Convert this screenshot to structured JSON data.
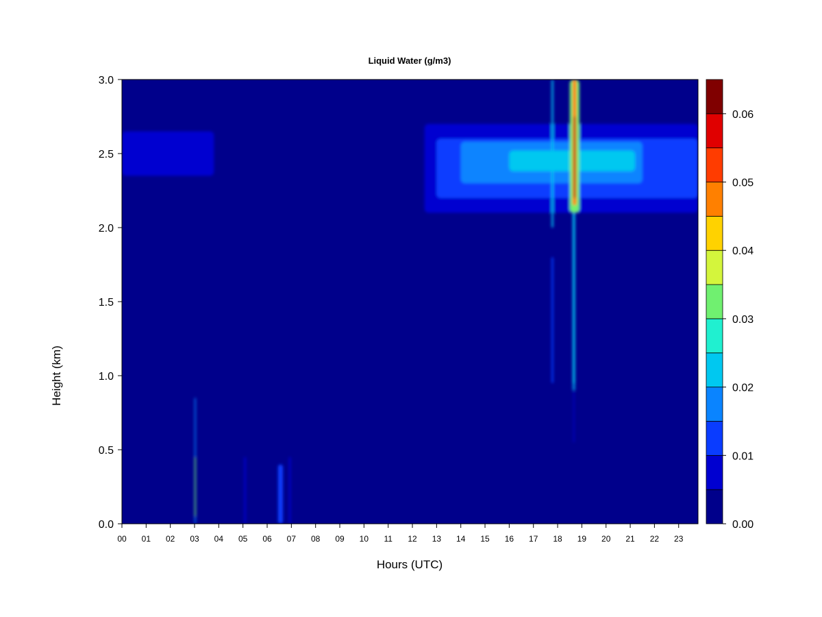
{
  "chart_data": {
    "type": "heatmap",
    "title": "Liquid Water (g/m3)",
    "xlabel": "Hours (UTC)",
    "ylabel": "Height (km)",
    "xlim": [
      0,
      23.8
    ],
    "ylim": [
      0.0,
      3.0
    ],
    "x_ticks": [
      "00",
      "01",
      "02",
      "03",
      "04",
      "05",
      "06",
      "07",
      "08",
      "09",
      "10",
      "11",
      "12",
      "13",
      "14",
      "15",
      "16",
      "17",
      "18",
      "19",
      "20",
      "21",
      "22",
      "23"
    ],
    "y_ticks": [
      "0.0",
      "0.5",
      "1.0",
      "1.5",
      "2.0",
      "2.5",
      "3.0"
    ],
    "colorbar": {
      "min": 0.0,
      "max": 0.065,
      "levels": [
        0.0,
        0.005,
        0.01,
        0.015,
        0.02,
        0.025,
        0.03,
        0.035,
        0.04,
        0.045,
        0.05,
        0.055,
        0.06,
        0.065
      ],
      "colors": [
        "#00008b",
        "#0000d0",
        "#0a3cff",
        "#0a84ff",
        "#00c8f0",
        "#20f0d0",
        "#70f070",
        "#d4f53c",
        "#ffd200",
        "#ff8000",
        "#ff3c00",
        "#e00000",
        "#800000"
      ],
      "tick_labels": [
        "0.00",
        "0.01",
        "0.02",
        "0.03",
        "0.04",
        "0.05",
        "0.06"
      ],
      "tick_values": [
        0.0,
        0.01,
        0.02,
        0.03,
        0.04,
        0.05,
        0.06
      ]
    },
    "features": [
      {
        "x": [
          12.5,
          23.8
        ],
        "y": [
          2.1,
          2.7
        ],
        "value": 0.008
      },
      {
        "x": [
          13.0,
          23.8
        ],
        "y": [
          2.2,
          2.6
        ],
        "value": 0.013
      },
      {
        "x": [
          14.0,
          21.5
        ],
        "y": [
          2.3,
          2.58
        ],
        "value": 0.018
      },
      {
        "x": [
          16.0,
          21.2
        ],
        "y": [
          2.38,
          2.52
        ],
        "value": 0.022
      },
      {
        "x": [
          0.0,
          3.8
        ],
        "y": [
          2.35,
          2.65
        ],
        "value": 0.005
      },
      {
        "x": [
          0.0,
          0.7
        ],
        "y": [
          2.45,
          2.55
        ],
        "value": 0.009
      },
      {
        "x": [
          3.0,
          3.05
        ],
        "y": [
          0.0,
          0.85
        ],
        "value": 0.016
      },
      {
        "x": [
          3.0,
          3.05
        ],
        "y": [
          0.05,
          0.45
        ],
        "value": 0.033
      },
      {
        "x": [
          5.05,
          5.12
        ],
        "y": [
          0.0,
          0.45
        ],
        "value": 0.008
      },
      {
        "x": [
          6.45,
          6.65
        ],
        "y": [
          0.0,
          0.4
        ],
        "value": 0.012
      },
      {
        "x": [
          6.9,
          6.97
        ],
        "y": [
          0.0,
          0.45
        ],
        "value": 0.009
      },
      {
        "x": [
          17.75,
          17.82
        ],
        "y": [
          2.0,
          3.0
        ],
        "value": 0.024
      },
      {
        "x": [
          17.75,
          17.82
        ],
        "y": [
          0.95,
          1.8
        ],
        "value": 0.012
      },
      {
        "x": [
          18.5,
          18.9
        ],
        "y": [
          2.1,
          3.0
        ],
        "value": 0.03
      },
      {
        "x": [
          18.62,
          18.78
        ],
        "y": [
          2.15,
          3.0
        ],
        "value": 0.047
      },
      {
        "x": [
          18.67,
          18.73
        ],
        "y": [
          2.2,
          2.75
        ],
        "value": 0.063
      },
      {
        "x": [
          18.62,
          18.72
        ],
        "y": [
          0.9,
          2.1
        ],
        "value": 0.02
      },
      {
        "x": [
          18.65,
          18.69
        ],
        "y": [
          0.55,
          0.95
        ],
        "value": 0.009
      }
    ]
  }
}
